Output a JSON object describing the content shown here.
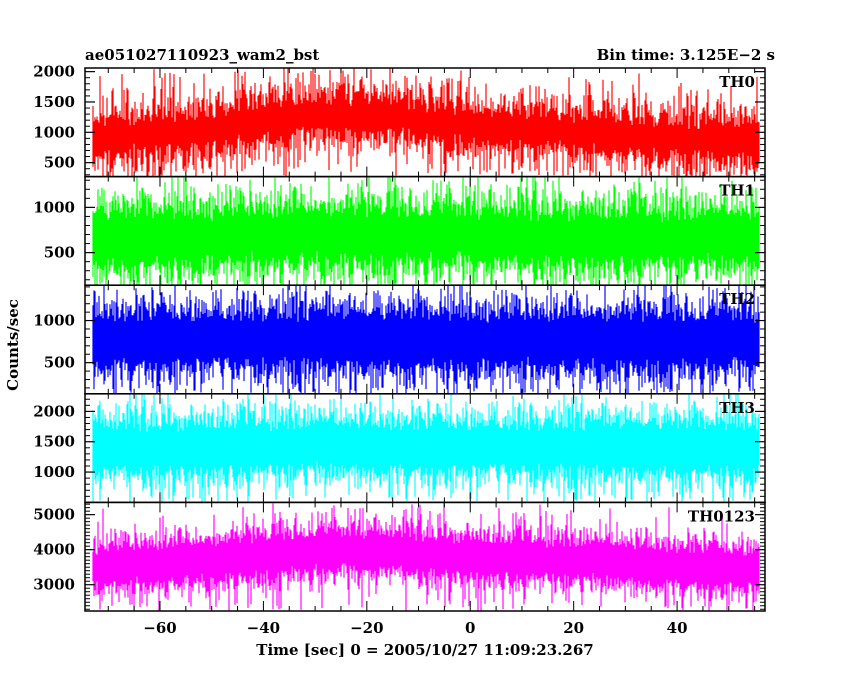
{
  "header": {
    "title": "ae051027110923_wam2_bst",
    "bin_time": "Bin time: 3.125E−2 s"
  },
  "chart_data": {
    "type": "line",
    "ylabel": "Counts/sec",
    "xlabel": "Time [sec] 0 = 2005/10/27 11:09:23.267",
    "xlim": [
      -74.5,
      57
    ],
    "x_data_range": [
      -73,
      56
    ],
    "x_ticks": [
      -60,
      -40,
      -20,
      0,
      20,
      40
    ],
    "grid": false,
    "panels": [
      {
        "name": "TH0",
        "color": "#ff0000",
        "ylim": [
          270,
          2060
        ],
        "y_ticks": [
          500,
          1000,
          1500,
          2000
        ],
        "mean_trend": {
          "x": [
            -73,
            -50,
            -30,
            -15,
            0,
            20,
            40,
            56
          ],
          "y": [
            900,
            1050,
            1300,
            1250,
            1100,
            1000,
            900,
            850
          ]
        },
        "noise_range": [
          250,
          700
        ],
        "peak_max": 2050
      },
      {
        "name": "TH1",
        "color": "#00ff00",
        "ylim": [
          140,
          1340
        ],
        "y_ticks": [
          500,
          1000
        ],
        "mean_trend": {
          "x": [
            -73,
            -30,
            0,
            56
          ],
          "y": [
            650,
            700,
            680,
            660
          ]
        },
        "noise_range": [
          300,
          550
        ],
        "peak_max": 1300
      },
      {
        "name": "TH2",
        "color": "#0000ff",
        "ylim": [
          130,
          1420
        ],
        "y_ticks": [
          500,
          1000
        ],
        "mean_trend": {
          "x": [
            -73,
            -30,
            0,
            56
          ],
          "y": [
            780,
            780,
            770,
            760
          ]
        },
        "noise_range": [
          350,
          550
        ],
        "peak_max": 1400
      },
      {
        "name": "TH3",
        "color": "#00ffff",
        "ylim": [
          500,
          2290
        ],
        "y_ticks": [
          1000,
          1500,
          2000
        ],
        "mean_trend": {
          "x": [
            -73,
            -30,
            0,
            56
          ],
          "y": [
            1400,
            1430,
            1420,
            1400
          ]
        },
        "noise_range": [
          450,
          700
        ],
        "peak_max": 2270
      },
      {
        "name": "TH0123",
        "color": "#ff00ff",
        "ylim": [
          2250,
          5350
        ],
        "y_ticks": [
          3000,
          4000,
          5000
        ],
        "mean_trend": {
          "x": [
            -73,
            -50,
            -30,
            -15,
            0,
            20,
            40,
            56
          ],
          "y": [
            3500,
            3700,
            3950,
            3950,
            3800,
            3700,
            3550,
            3450
          ]
        },
        "noise_range": [
          600,
          1000
        ],
        "peak_max": 5300
      }
    ]
  }
}
